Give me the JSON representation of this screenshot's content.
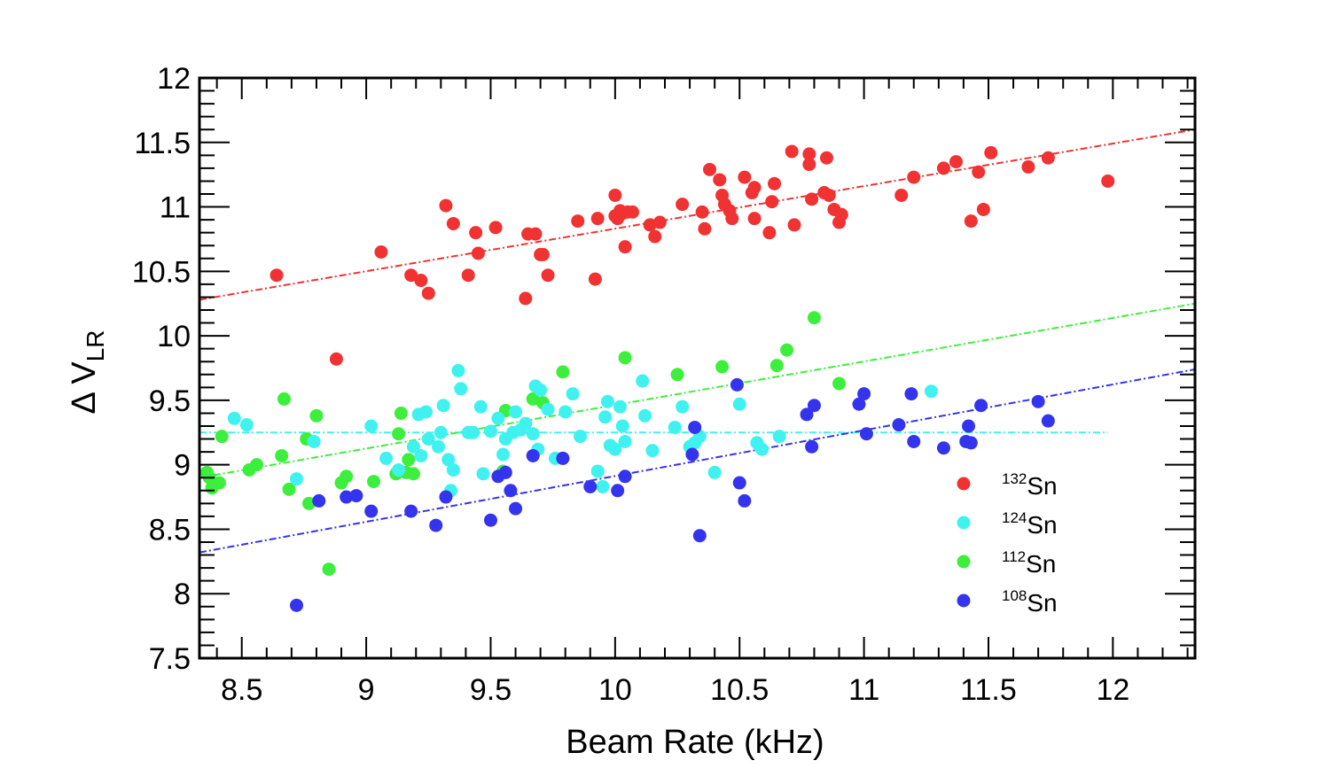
{
  "chart_data": {
    "type": "scatter",
    "title": "",
    "xlabel": "Beam Rate (kHz)",
    "ylabel": {
      "main": "Δ V",
      "sub": "LR"
    },
    "xlim": [
      8.33,
      12.33
    ],
    "ylim": [
      7.5,
      12
    ],
    "xticks": [
      "8.5",
      "9",
      "9.5",
      "10",
      "10.5",
      "11",
      "11.5",
      "12"
    ],
    "yticks": [
      "7.5",
      "8",
      "8.5",
      "9",
      "9.5",
      "10",
      "10.5",
      "11",
      "11.5",
      "12"
    ],
    "xtick_values": [
      8.5,
      9,
      9.5,
      10,
      10.5,
      11,
      11.5,
      12
    ],
    "ytick_values": [
      7.5,
      8,
      8.5,
      9,
      9.5,
      10,
      10.5,
      11,
      11.5,
      12
    ],
    "grid": false,
    "legend_position": "bottom-right",
    "series": [
      {
        "name": "Sn",
        "mass": "132",
        "color": "#f03232",
        "fit": [
          [
            8.33,
            10.28
          ],
          [
            12.33,
            11.6
          ]
        ],
        "points": [
          [
            8.64,
            10.47
          ],
          [
            8.88,
            9.82
          ],
          [
            9.06,
            10.65
          ],
          [
            9.18,
            10.47
          ],
          [
            9.22,
            10.43
          ],
          [
            9.25,
            10.33
          ],
          [
            9.32,
            11.01
          ],
          [
            9.35,
            10.87
          ],
          [
            9.41,
            10.47
          ],
          [
            9.44,
            10.8
          ],
          [
            9.45,
            10.64
          ],
          [
            9.52,
            10.84
          ],
          [
            9.64,
            10.29
          ],
          [
            9.65,
            10.79
          ],
          [
            9.68,
            10.79
          ],
          [
            9.7,
            10.63
          ],
          [
            9.71,
            10.63
          ],
          [
            9.73,
            10.47
          ],
          [
            9.85,
            10.89
          ],
          [
            9.92,
            10.44
          ],
          [
            9.93,
            10.91
          ],
          [
            10.0,
            11.09
          ],
          [
            10.0,
            10.93
          ],
          [
            10.01,
            10.91
          ],
          [
            10.02,
            10.97
          ],
          [
            10.03,
            10.95
          ],
          [
            10.04,
            10.69
          ],
          [
            10.05,
            10.96
          ],
          [
            10.07,
            10.96
          ],
          [
            10.14,
            10.86
          ],
          [
            10.16,
            10.77
          ],
          [
            10.18,
            10.88
          ],
          [
            10.27,
            11.02
          ],
          [
            10.35,
            10.96
          ],
          [
            10.36,
            10.83
          ],
          [
            10.38,
            11.29
          ],
          [
            10.42,
            11.21
          ],
          [
            10.43,
            11.09
          ],
          [
            10.44,
            11.02
          ],
          [
            10.46,
            10.97
          ],
          [
            10.47,
            10.91
          ],
          [
            10.52,
            11.23
          ],
          [
            10.55,
            11.11
          ],
          [
            10.56,
            11.15
          ],
          [
            10.56,
            10.91
          ],
          [
            10.62,
            10.8
          ],
          [
            10.63,
            11.04
          ],
          [
            10.64,
            11.18
          ],
          [
            10.71,
            11.43
          ],
          [
            10.72,
            10.86
          ],
          [
            10.78,
            11.41
          ],
          [
            10.78,
            11.33
          ],
          [
            10.79,
            11.06
          ],
          [
            10.84,
            11.11
          ],
          [
            10.85,
            11.38
          ],
          [
            10.86,
            11.09
          ],
          [
            10.88,
            10.98
          ],
          [
            10.9,
            10.88
          ],
          [
            10.91,
            10.94
          ],
          [
            11.15,
            11.09
          ],
          [
            11.2,
            11.23
          ],
          [
            11.32,
            11.3
          ],
          [
            11.37,
            11.35
          ],
          [
            11.43,
            10.89
          ],
          [
            11.46,
            11.27
          ],
          [
            11.48,
            10.98
          ],
          [
            11.51,
            11.42
          ],
          [
            11.66,
            11.31
          ],
          [
            11.74,
            11.38
          ],
          [
            11.98,
            11.2
          ]
        ]
      },
      {
        "name": "Sn",
        "mass": "124",
        "color": "#3ff2f0",
        "fit": [
          [
            8.33,
            9.25
          ],
          [
            11.98,
            9.25
          ]
        ],
        "points": [
          [
            8.47,
            9.36
          ],
          [
            8.52,
            9.31
          ],
          [
            8.72,
            8.89
          ],
          [
            8.79,
            9.18
          ],
          [
            9.02,
            9.3
          ],
          [
            9.08,
            9.05
          ],
          [
            9.13,
            8.96
          ],
          [
            9.19,
            9.14
          ],
          [
            9.21,
            9.39
          ],
          [
            9.22,
            9.07
          ],
          [
            9.24,
            9.41
          ],
          [
            9.25,
            9.2
          ],
          [
            9.29,
            9.14
          ],
          [
            9.3,
            9.25
          ],
          [
            9.31,
            9.46
          ],
          [
            9.33,
            9.04
          ],
          [
            9.34,
            8.8
          ],
          [
            9.35,
            8.96
          ],
          [
            9.37,
            9.73
          ],
          [
            9.38,
            9.59
          ],
          [
            9.41,
            9.25
          ],
          [
            9.43,
            9.25
          ],
          [
            9.46,
            9.45
          ],
          [
            9.47,
            8.93
          ],
          [
            9.5,
            9.26
          ],
          [
            9.53,
            9.36
          ],
          [
            9.55,
            9.08
          ],
          [
            9.56,
            9.2
          ],
          [
            9.59,
            9.25
          ],
          [
            9.6,
            9.41
          ],
          [
            9.62,
            9.27
          ],
          [
            9.64,
            9.32
          ],
          [
            9.67,
            9.24
          ],
          [
            9.68,
            9.61
          ],
          [
            9.69,
            9.12
          ],
          [
            9.7,
            9.58
          ],
          [
            9.73,
            9.43
          ],
          [
            9.76,
            9.05
          ],
          [
            9.8,
            9.41
          ],
          [
            9.83,
            9.55
          ],
          [
            9.86,
            9.22
          ],
          [
            9.93,
            8.95
          ],
          [
            9.95,
            8.83
          ],
          [
            9.96,
            9.37
          ],
          [
            9.97,
            9.49
          ],
          [
            9.98,
            9.15
          ],
          [
            10.0,
            9.12
          ],
          [
            10.02,
            9.45
          ],
          [
            10.03,
            9.3
          ],
          [
            10.04,
            9.18
          ],
          [
            10.11,
            9.65
          ],
          [
            10.12,
            9.38
          ],
          [
            10.15,
            9.11
          ],
          [
            10.24,
            9.29
          ],
          [
            10.27,
            9.45
          ],
          [
            10.3,
            9.14
          ],
          [
            10.32,
            9.17
          ],
          [
            10.34,
            9.22
          ],
          [
            10.4,
            8.94
          ],
          [
            10.5,
            9.47
          ],
          [
            10.57,
            9.17
          ],
          [
            10.59,
            9.12
          ],
          [
            10.66,
            9.22
          ],
          [
            11.27,
            9.57
          ]
        ]
      },
      {
        "name": "Sn",
        "mass": "112",
        "color": "#3cef3c",
        "fit": [
          [
            8.33,
            8.9
          ],
          [
            12.33,
            10.25
          ]
        ],
        "points": [
          [
            8.36,
            8.94
          ],
          [
            8.37,
            8.9
          ],
          [
            8.38,
            8.82
          ],
          [
            8.39,
            8.85
          ],
          [
            8.41,
            8.86
          ],
          [
            8.42,
            9.22
          ],
          [
            8.53,
            8.96
          ],
          [
            8.56,
            9.0
          ],
          [
            8.66,
            9.07
          ],
          [
            8.67,
            9.51
          ],
          [
            8.69,
            8.81
          ],
          [
            8.76,
            9.2
          ],
          [
            8.77,
            8.7
          ],
          [
            8.8,
            9.38
          ],
          [
            8.85,
            8.19
          ],
          [
            8.9,
            8.86
          ],
          [
            8.92,
            8.91
          ],
          [
            9.03,
            8.87
          ],
          [
            9.12,
            8.93
          ],
          [
            9.13,
            9.24
          ],
          [
            9.14,
            9.4
          ],
          [
            9.16,
            8.94
          ],
          [
            9.17,
            9.04
          ],
          [
            9.19,
            8.93
          ],
          [
            9.55,
            8.95
          ],
          [
            9.56,
            9.42
          ],
          [
            9.67,
            9.51
          ],
          [
            9.71,
            9.48
          ],
          [
            9.79,
            9.72
          ],
          [
            10.04,
            9.83
          ],
          [
            10.25,
            9.7
          ],
          [
            10.43,
            9.76
          ],
          [
            10.65,
            9.77
          ],
          [
            10.69,
            9.89
          ],
          [
            10.8,
            10.14
          ],
          [
            10.9,
            9.63
          ]
        ]
      },
      {
        "name": "Sn",
        "mass": "108",
        "color": "#3434ee",
        "fit": [
          [
            8.33,
            8.32
          ],
          [
            12.33,
            9.74
          ]
        ],
        "points": [
          [
            8.72,
            7.91
          ],
          [
            8.81,
            8.72
          ],
          [
            8.92,
            8.75
          ],
          [
            8.96,
            8.76
          ],
          [
            9.02,
            8.64
          ],
          [
            9.18,
            8.64
          ],
          [
            9.28,
            8.53
          ],
          [
            9.32,
            8.75
          ],
          [
            9.5,
            8.57
          ],
          [
            9.53,
            8.91
          ],
          [
            9.56,
            8.94
          ],
          [
            9.58,
            8.8
          ],
          [
            9.6,
            8.66
          ],
          [
            9.67,
            9.07
          ],
          [
            9.79,
            9.05
          ],
          [
            9.9,
            8.83
          ],
          [
            10.01,
            8.8
          ],
          [
            10.04,
            8.91
          ],
          [
            10.31,
            9.08
          ],
          [
            10.32,
            9.29
          ],
          [
            10.34,
            8.45
          ],
          [
            10.49,
            9.62
          ],
          [
            10.5,
            8.86
          ],
          [
            10.52,
            8.72
          ],
          [
            10.77,
            9.39
          ],
          [
            10.79,
            9.14
          ],
          [
            10.8,
            9.46
          ],
          [
            10.98,
            9.47
          ],
          [
            11.0,
            9.55
          ],
          [
            11.01,
            9.24
          ],
          [
            11.14,
            9.31
          ],
          [
            11.19,
            9.55
          ],
          [
            11.2,
            9.18
          ],
          [
            11.32,
            9.13
          ],
          [
            11.41,
            9.18
          ],
          [
            11.42,
            9.3
          ],
          [
            11.43,
            9.17
          ],
          [
            11.47,
            9.46
          ],
          [
            11.7,
            9.49
          ],
          [
            11.74,
            9.34
          ]
        ]
      }
    ]
  }
}
